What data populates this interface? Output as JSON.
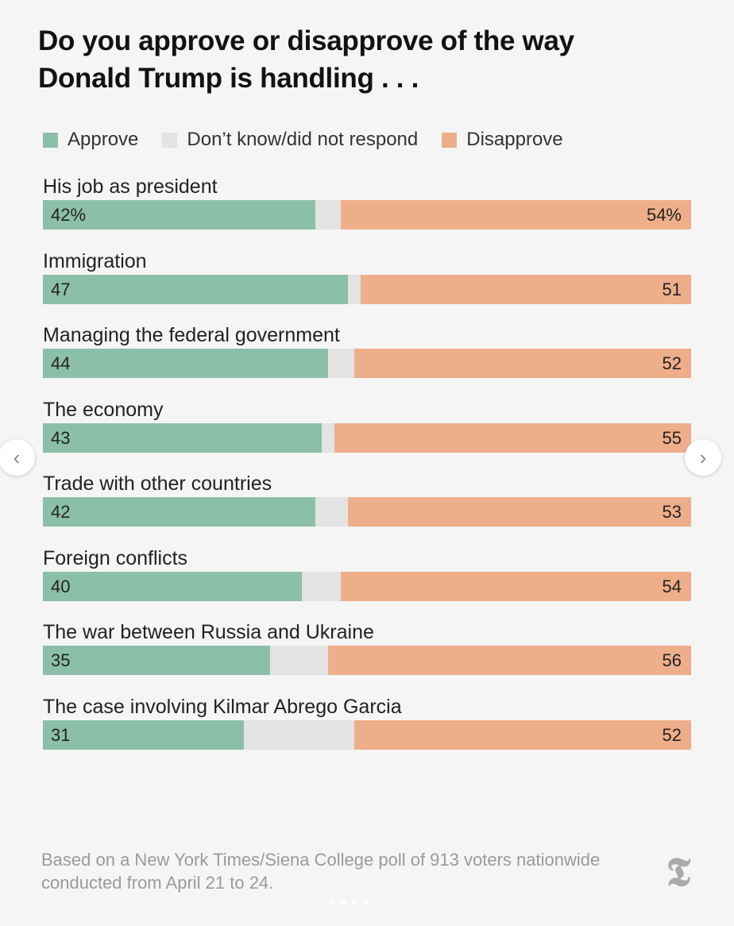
{
  "chart_data": {
    "type": "bar",
    "orientation": "horizontal-stacked",
    "title": "Do you approve or disapprove of the way Donald Trump is handling . . .",
    "legend": [
      "Approve",
      "Don’t know/did not respond",
      "Disapprove"
    ],
    "legend_placement": "top",
    "colors": {
      "approve": "#8bbfa8",
      "dont_know": "#e3e3e3",
      "disapprove": "#eeae8a"
    },
    "xlim": [
      0,
      100
    ],
    "grid": false,
    "categories": [
      "His job as president",
      "Immigration",
      "Managing the federal government",
      "The economy",
      "Trade with other countries",
      "Foreign conflicts",
      "The war between Russia and Ukraine",
      "The case involving Kilmar Abrego Garcia"
    ],
    "series": [
      {
        "name": "Approve",
        "values": [
          42,
          47,
          44,
          43,
          42,
          40,
          35,
          31
        ]
      },
      {
        "name": "Don’t know/did not respond",
        "values": [
          4,
          2,
          4,
          2,
          5,
          6,
          9,
          17
        ]
      },
      {
        "name": "Disapprove",
        "values": [
          54,
          51,
          52,
          55,
          53,
          54,
          56,
          52
        ]
      }
    ],
    "approve_labels": [
      "42%",
      "47",
      "44",
      "43",
      "42",
      "40",
      "35",
      "31"
    ],
    "disapprove_labels": [
      "54%",
      "51",
      "52",
      "55",
      "53",
      "54",
      "56",
      "52"
    ]
  },
  "footnote": "Based on a New York Times/Siena College poll of 913 voters nationwide conducted from April 21 to 24.",
  "logo_text": "T",
  "carousel": {
    "prev": "‹",
    "next": "›",
    "dots": 4,
    "active_dot": 1
  }
}
